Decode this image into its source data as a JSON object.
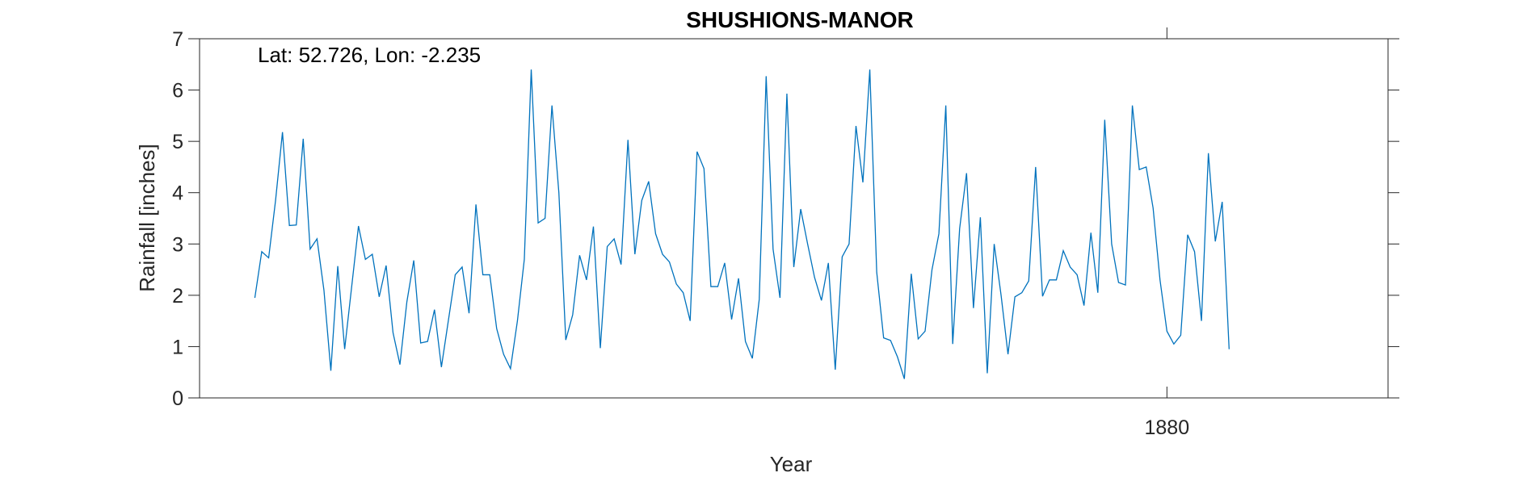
{
  "chart_data": {
    "type": "line",
    "title": "SHUSHIONS-MANOR",
    "annotation": "Lat: 52.726, Lon: -2.235",
    "xlabel": "Year",
    "ylabel": "Rainfall [inches]",
    "ylim": [
      0,
      7
    ],
    "yticks": [
      0,
      1,
      2,
      3,
      4,
      5,
      6,
      7
    ],
    "xticks": [
      {
        "value": 1880,
        "label": "1880"
      }
    ],
    "grid": false,
    "color": "#0072BD",
    "series": [
      {
        "start": "1869-01",
        "step": "month",
        "values": [
          1.95,
          2.85,
          2.73,
          3.85,
          5.18,
          3.36,
          3.37,
          5.05,
          2.9,
          3.1,
          2.1,
          0.53,
          2.57,
          0.95,
          2.15,
          3.35,
          2.7,
          2.8,
          1.97,
          2.58,
          1.27,
          0.65,
          1.87,
          2.68,
          1.07,
          1.1,
          1.72,
          0.6,
          1.5,
          2.4,
          2.55,
          1.65,
          3.77,
          2.4,
          2.4,
          1.35,
          0.85,
          0.57,
          1.5,
          2.7,
          6.4,
          3.41,
          3.5,
          5.7,
          4.0,
          1.13,
          1.62,
          2.78,
          2.3,
          3.34,
          0.97,
          2.95,
          3.1,
          2.6,
          5.03,
          2.8,
          3.85,
          4.22,
          3.2,
          2.8,
          2.65,
          2.22,
          2.05,
          1.5,
          4.8,
          4.47,
          2.17,
          2.17,
          2.63,
          1.53,
          2.33,
          1.1,
          0.77,
          1.92,
          6.27,
          2.9,
          1.95,
          5.93,
          2.55,
          3.68,
          3.0,
          2.35,
          1.9,
          2.63,
          0.55,
          2.75,
          3.0,
          5.3,
          4.2,
          6.4,
          2.45,
          1.17,
          1.12,
          0.8,
          0.37,
          2.42,
          1.15,
          1.3,
          2.5,
          3.2,
          5.7,
          1.05,
          3.3,
          4.38,
          1.75,
          3.52,
          0.48,
          3.0,
          2.0,
          0.85,
          1.97,
          2.05,
          2.28,
          4.5,
          1.98,
          2.3,
          2.3,
          2.87,
          2.55,
          2.4,
          1.8,
          3.22,
          2.05,
          5.42,
          3.0,
          2.25,
          2.2,
          5.7,
          4.45,
          4.5,
          3.7,
          2.3,
          1.3,
          1.05,
          1.22,
          3.18,
          2.85,
          1.5,
          4.77,
          3.05,
          3.82,
          0.95
        ]
      }
    ]
  }
}
